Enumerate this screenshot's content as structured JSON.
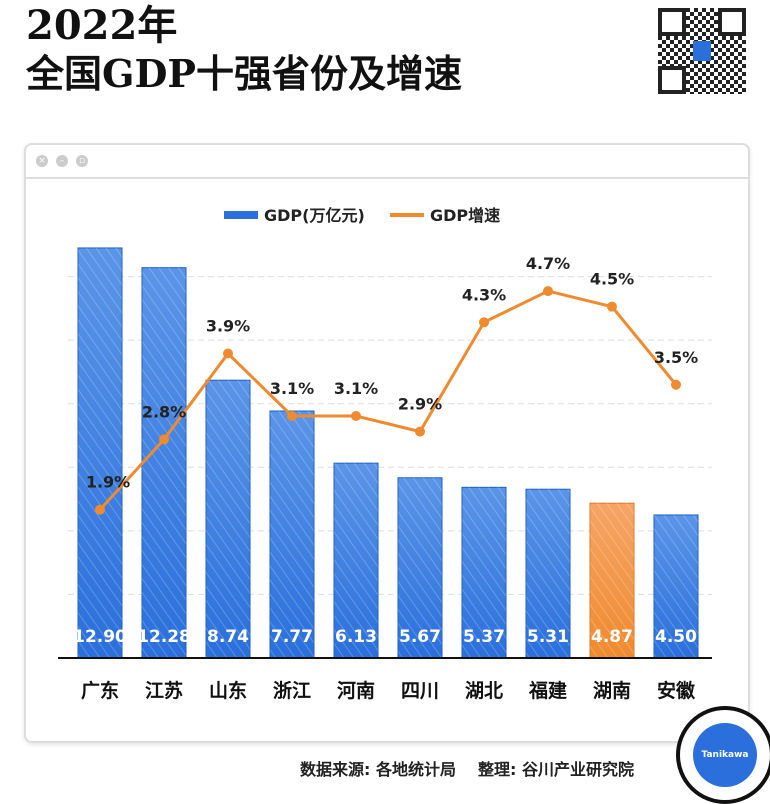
{
  "title_line1": "2022年",
  "title_line2": "全国GDP十强省份及增速",
  "badge_text": "Tanikawa",
  "source": "数据来源: 各地统计局",
  "compiler": "整理: 谷川产业研究院",
  "colors": {
    "bar": "#2a6fdb",
    "highlight": "#f08a3c",
    "line": "#ef8a2e"
  },
  "chart_data": {
    "type": "bar+line",
    "categories": [
      "广东",
      "江苏",
      "山东",
      "浙江",
      "河南",
      "四川",
      "湖北",
      "福建",
      "湖南",
      "安徽"
    ],
    "series": [
      {
        "name": "GDP(万亿元)",
        "type": "bar",
        "values": [
          12.9,
          12.28,
          8.74,
          7.77,
          6.13,
          5.67,
          5.37,
          5.31,
          4.87,
          4.5
        ],
        "labels": [
          "12.90",
          "12.28",
          "8.74",
          "7.77",
          "6.13",
          "5.67",
          "5.37",
          "5.31",
          "4.87",
          "4.50"
        ]
      },
      {
        "name": "GDP增速",
        "type": "line",
        "values": [
          1.9,
          2.8,
          3.9,
          3.1,
          3.1,
          2.9,
          4.3,
          4.7,
          4.5,
          3.5
        ],
        "labels": [
          "1.9%",
          "2.8%",
          "3.9%",
          "3.1%",
          "3.1%",
          "2.9%",
          "4.3%",
          "4.7%",
          "4.5%",
          "3.5%"
        ]
      }
    ],
    "highlight_index": 8,
    "ylim": [
      0,
      14
    ],
    "y2lim": [
      0,
      5.7
    ],
    "grid": true,
    "legend": "top-center"
  }
}
